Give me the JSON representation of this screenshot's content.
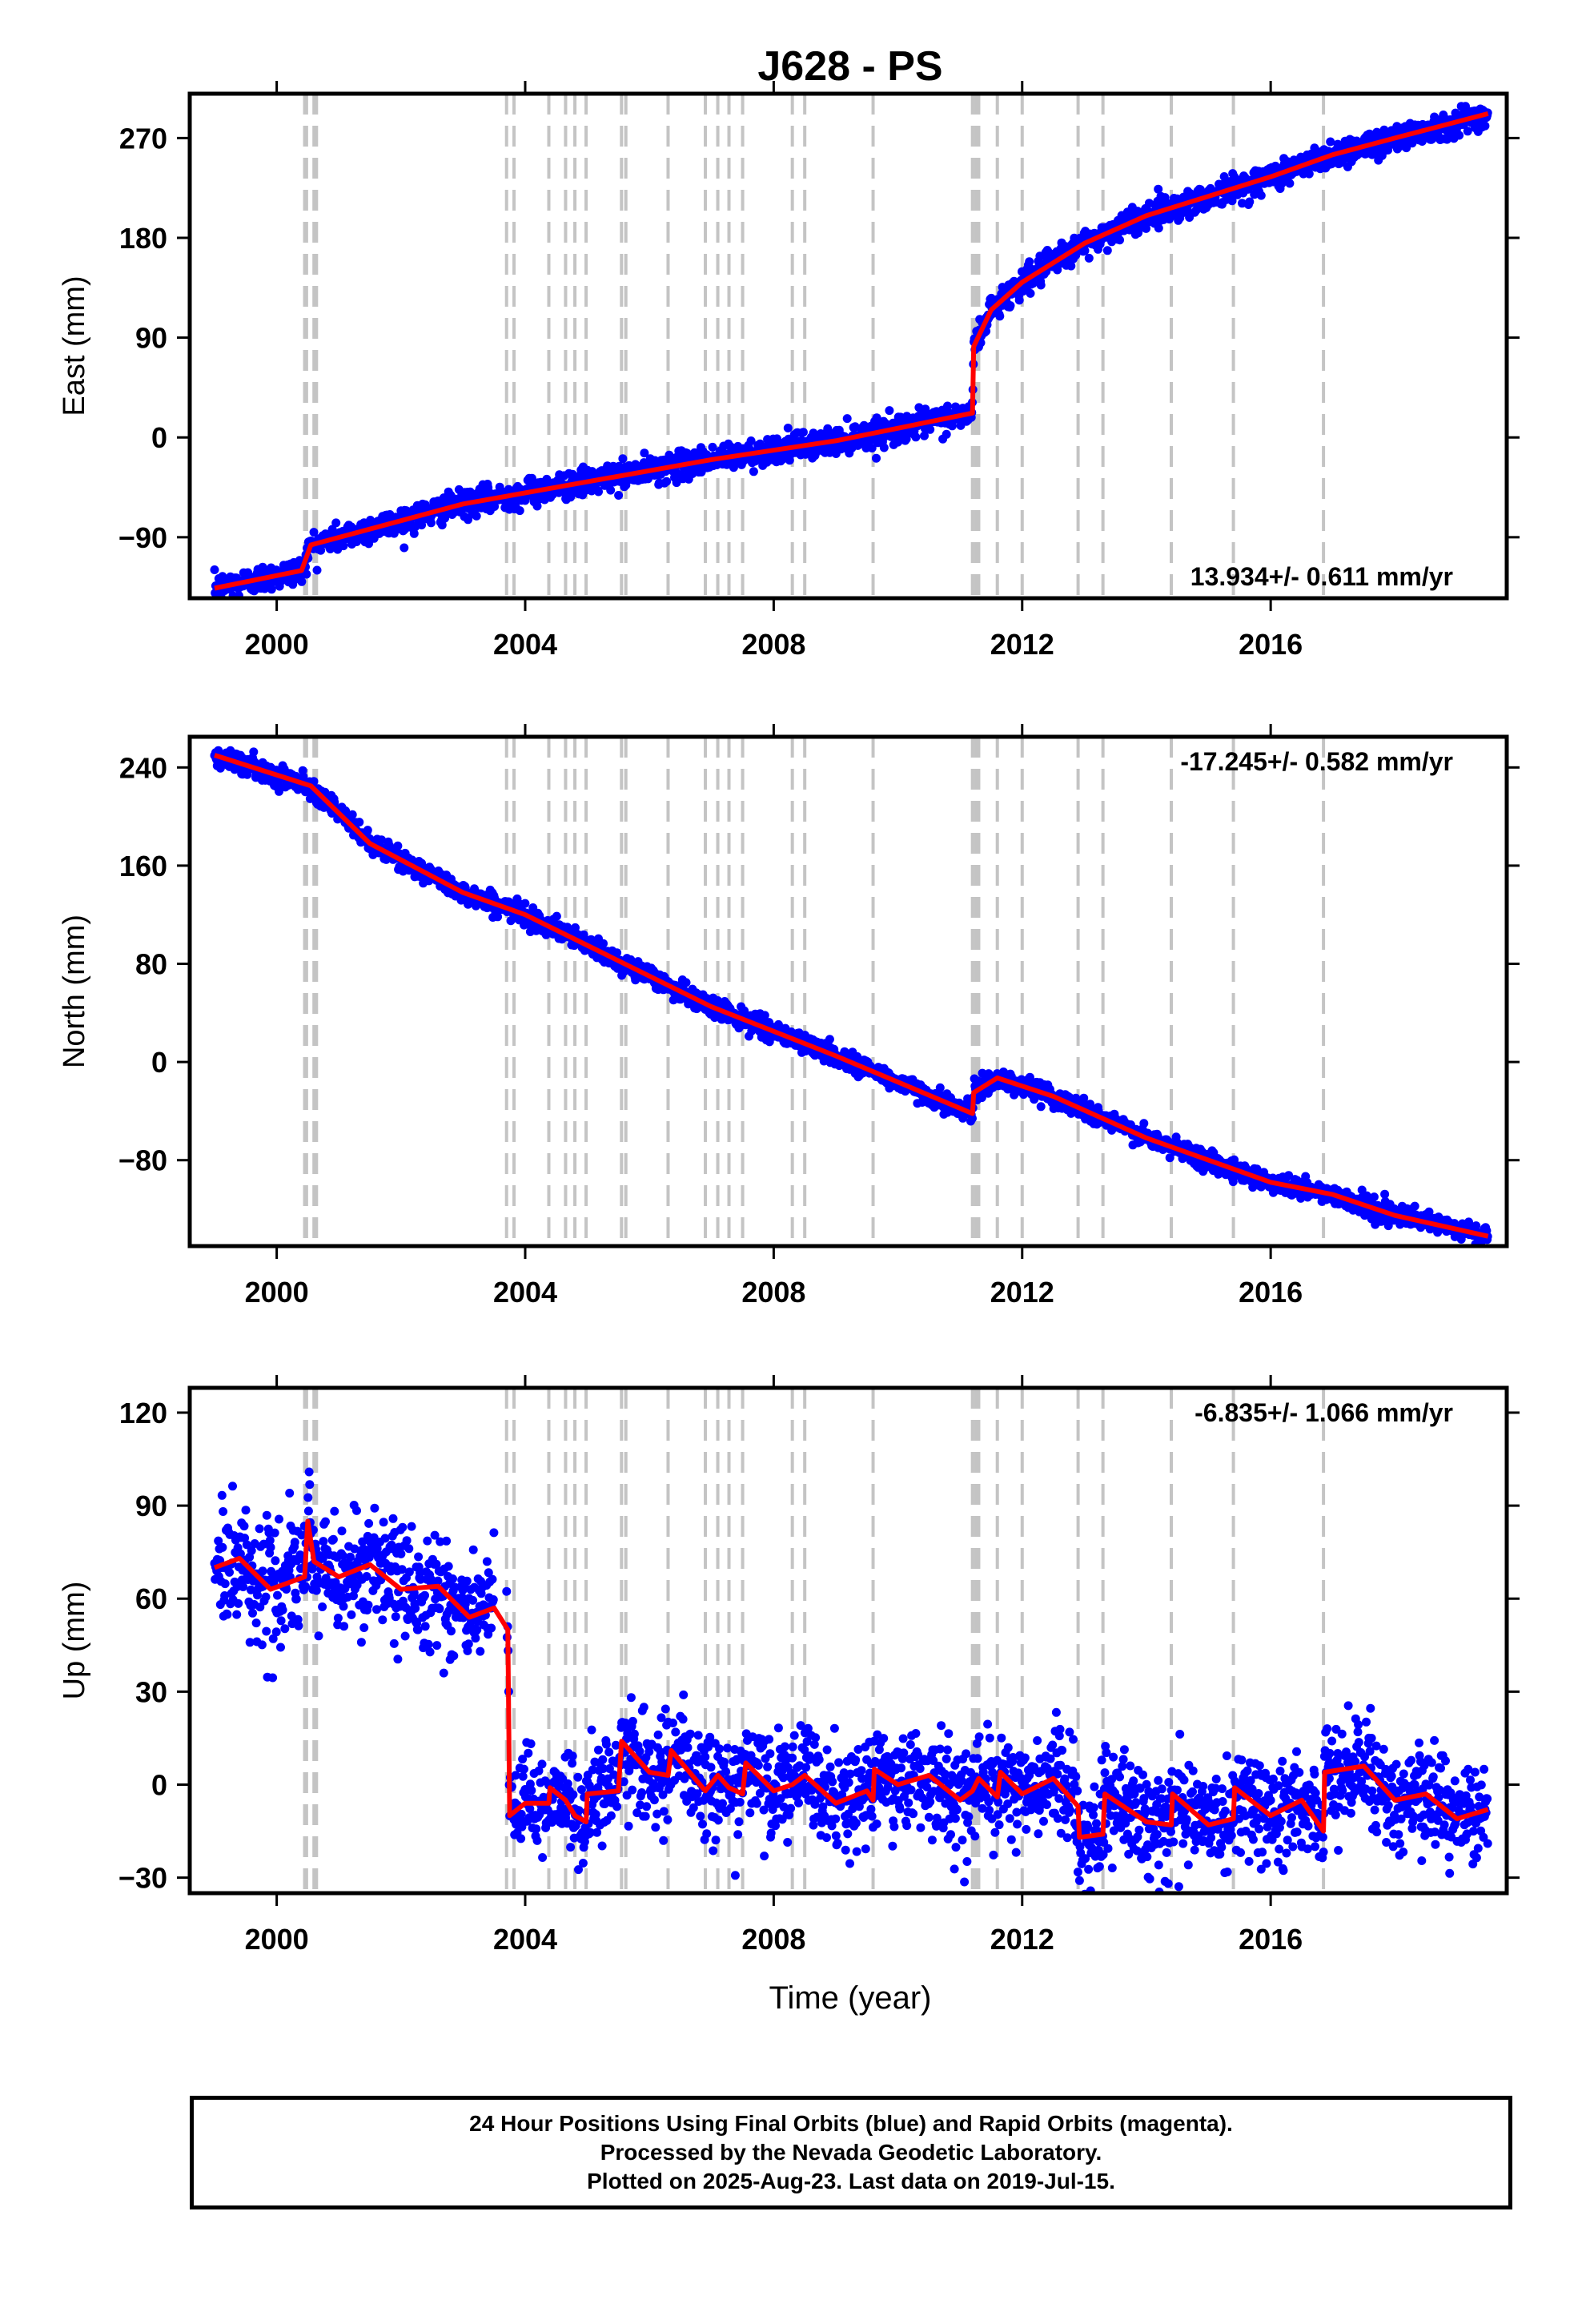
{
  "chart_data": {
    "title": "J628 - PS",
    "type": "scatter",
    "xlabel": "Time (year)",
    "xlim": [
      1998.6,
      2019.8
    ],
    "xticks": [
      2000,
      2004,
      2008,
      2012,
      2016
    ],
    "event_lines": [
      2000.45,
      2000.48,
      2000.6,
      2000.64,
      2003.7,
      2003.82,
      2004.38,
      2004.65,
      2004.8,
      2004.98,
      2005.55,
      2005.62,
      2006.3,
      2006.9,
      2007.1,
      2007.28,
      2007.5,
      2008.3,
      2008.5,
      2009.6,
      2011.2,
      2011.25,
      2011.3,
      2011.6,
      2012.0,
      2012.9,
      2013.3,
      2014.4,
      2015.4,
      2016.85
    ],
    "panels": [
      {
        "name": "east",
        "ylabel": "East (mm)",
        "ylim": [
          -145,
          310
        ],
        "yticks": [
          -90,
          0,
          90,
          180,
          270
        ],
        "rate_label": "13.934+/- 0.611 mm/yr",
        "rate_position": "bottom-right",
        "model": [
          [
            1999.0,
            -136
          ],
          [
            2000.4,
            -120
          ],
          [
            2000.55,
            -97
          ],
          [
            2003.0,
            -60
          ],
          [
            2005.0,
            -40
          ],
          [
            2007.0,
            -20
          ],
          [
            2009.0,
            -3
          ],
          [
            2011.2,
            22
          ],
          [
            2011.22,
            82
          ],
          [
            2011.5,
            115
          ],
          [
            2012.0,
            140
          ],
          [
            2013.0,
            175
          ],
          [
            2014.0,
            200
          ],
          [
            2016.0,
            235
          ],
          [
            2017.0,
            255
          ],
          [
            2018.0,
            270
          ],
          [
            2019.5,
            292
          ]
        ],
        "noise": 6
      },
      {
        "name": "north",
        "ylabel": "North (mm)",
        "ylim": [
          -150,
          265
        ],
        "yticks": [
          -80,
          0,
          80,
          160,
          240
        ],
        "rate_label": "-17.245+/- 0.582 mm/yr",
        "rate_position": "top-right",
        "model": [
          [
            1999.0,
            250
          ],
          [
            2000.55,
            225
          ],
          [
            2001.5,
            178
          ],
          [
            2003.0,
            138
          ],
          [
            2004.0,
            120
          ],
          [
            2005.0,
            95
          ],
          [
            2007.0,
            45
          ],
          [
            2009.0,
            5
          ],
          [
            2011.2,
            -42
          ],
          [
            2011.22,
            -25
          ],
          [
            2011.6,
            -13
          ],
          [
            2012.5,
            -28
          ],
          [
            2014.0,
            -62
          ],
          [
            2016.0,
            -98
          ],
          [
            2017.0,
            -108
          ],
          [
            2018.0,
            -125
          ],
          [
            2019.5,
            -142
          ]
        ],
        "noise": 4
      },
      {
        "name": "up",
        "ylabel": "Up (mm)",
        "ylim": [
          -35,
          128
        ],
        "yticks": [
          -30,
          0,
          30,
          60,
          90,
          120
        ],
        "rate_label": "-6.835+/- 1.066 mm/yr",
        "rate_position": "top-right",
        "model": [
          [
            1999.0,
            70
          ],
          [
            1999.4,
            73
          ],
          [
            1999.9,
            63
          ],
          [
            2000.45,
            67
          ],
          [
            2000.5,
            85
          ],
          [
            2000.6,
            72
          ],
          [
            2001.0,
            67
          ],
          [
            2001.5,
            71
          ],
          [
            2002.0,
            63
          ],
          [
            2002.6,
            64
          ],
          [
            2003.1,
            54
          ],
          [
            2003.5,
            57
          ],
          [
            2003.72,
            50
          ],
          [
            2003.75,
            -10
          ],
          [
            2004.0,
            -6
          ],
          [
            2004.38,
            -6
          ],
          [
            2004.4,
            -1
          ],
          [
            2004.65,
            -5
          ],
          [
            2004.8,
            -10
          ],
          [
            2004.98,
            -12
          ],
          [
            2005.0,
            -3
          ],
          [
            2005.5,
            -2
          ],
          [
            2005.55,
            14
          ],
          [
            2006.0,
            4
          ],
          [
            2006.3,
            3
          ],
          [
            2006.35,
            11
          ],
          [
            2006.9,
            -2
          ],
          [
            2007.1,
            3
          ],
          [
            2007.28,
            -1
          ],
          [
            2007.5,
            -3
          ],
          [
            2007.55,
            7
          ],
          [
            2008.0,
            -2
          ],
          [
            2008.3,
            0
          ],
          [
            2008.5,
            3
          ],
          [
            2009.0,
            -6
          ],
          [
            2009.5,
            -2
          ],
          [
            2009.6,
            -5
          ],
          [
            2009.62,
            5
          ],
          [
            2010.0,
            0
          ],
          [
            2010.5,
            3
          ],
          [
            2011.0,
            -5
          ],
          [
            2011.2,
            -2
          ],
          [
            2011.3,
            2
          ],
          [
            2011.6,
            -4
          ],
          [
            2011.65,
            4
          ],
          [
            2012.0,
            -3
          ],
          [
            2012.5,
            2
          ],
          [
            2012.9,
            -7
          ],
          [
            2012.92,
            -17
          ],
          [
            2013.3,
            -16
          ],
          [
            2013.33,
            -3
          ],
          [
            2014.0,
            -12
          ],
          [
            2014.4,
            -13
          ],
          [
            2014.42,
            -3
          ],
          [
            2015.0,
            -13
          ],
          [
            2015.4,
            -11
          ],
          [
            2015.42,
            -1
          ],
          [
            2016.0,
            -10
          ],
          [
            2016.5,
            -5
          ],
          [
            2016.85,
            -15
          ],
          [
            2016.87,
            4
          ],
          [
            2017.5,
            6
          ],
          [
            2018.0,
            -5
          ],
          [
            2018.5,
            -3
          ],
          [
            2019.0,
            -11
          ],
          [
            2019.5,
            -8
          ]
        ],
        "noise": 8,
        "gap": [
          2003.5,
          2003.7
        ]
      }
    ]
  },
  "footer": {
    "line1": "24 Hour Positions Using Final Orbits (blue) and Rapid Orbits (magenta).",
    "line2": "Processed by the Nevada Geodetic Laboratory.",
    "line3": "Plotted on 2025-Aug-23. Last data on 2019-Jul-15."
  }
}
